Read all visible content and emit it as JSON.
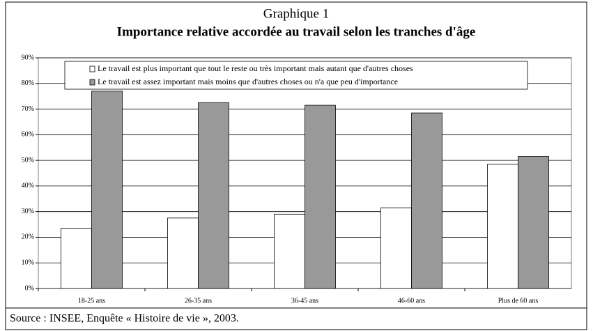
{
  "chart_data": {
    "type": "bar",
    "title": "Graphique 1",
    "subtitle": "Importance relative accordée au travail selon les tranches d'âge",
    "source": "Source : INSEE, Enquête « Histoire de vie », 2003.",
    "categories": [
      "18-25 ans",
      "26-35 ans",
      "36-45 ans",
      "46-60 ans",
      "Plus de 60 ans"
    ],
    "series": [
      {
        "name": "Le travail est plus important que tout le reste ou très important mais autant que d'autres choses",
        "color": "#ffffff",
        "values": [
          23.5,
          27.5,
          29,
          31.5,
          48.5
        ]
      },
      {
        "name": "Le travail est assez important mais moins que d'autres choses ou n'a que peu d'importance",
        "color": "#999999",
        "values": [
          77,
          72.5,
          71.5,
          68.5,
          51.5
        ]
      }
    ],
    "ylim": [
      0,
      90
    ],
    "yticks": [
      {
        "value": 0,
        "label": "0%"
      },
      {
        "value": 10,
        "label": "10%"
      },
      {
        "value": 20,
        "label": "20%"
      },
      {
        "value": 30,
        "label": "30%"
      },
      {
        "value": 40,
        "label": "40%"
      },
      {
        "value": 50,
        "label": "50%"
      },
      {
        "value": 60,
        "label": "60%"
      },
      {
        "value": 70,
        "label": "70%"
      },
      {
        "value": 80,
        "label": "80%"
      },
      {
        "value": 90,
        "label": "90%"
      }
    ],
    "grid": true,
    "legend": "top"
  }
}
